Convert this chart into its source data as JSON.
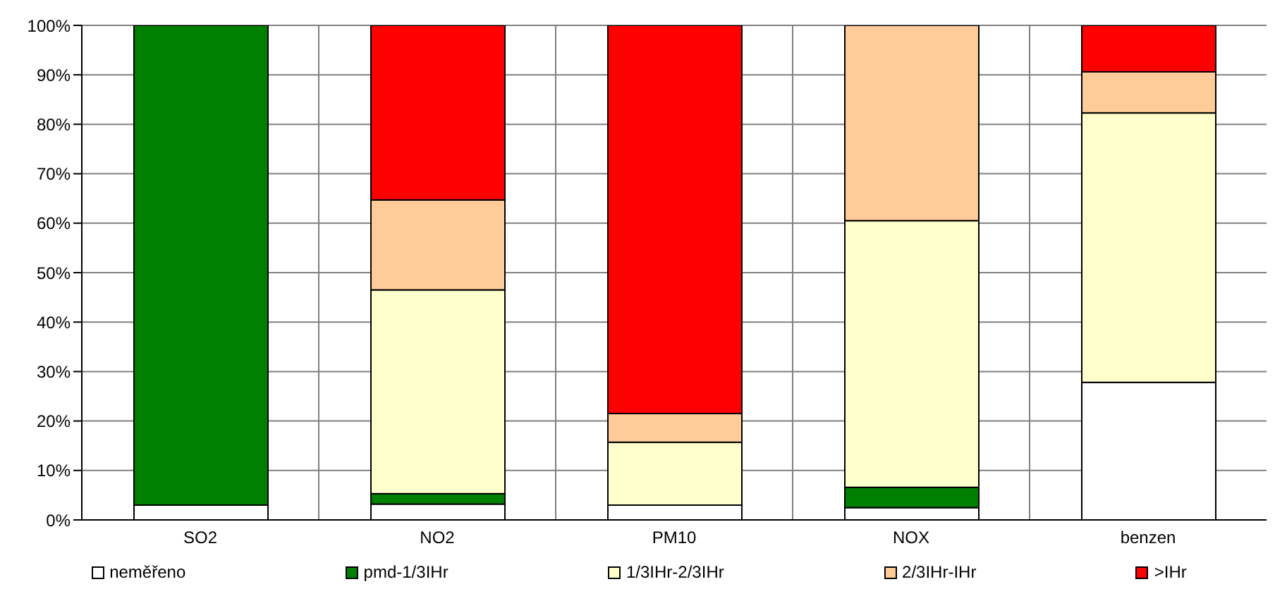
{
  "chart_data": {
    "type": "bar",
    "stacked": true,
    "categories": [
      "SO2",
      "NO2",
      "PM10",
      "NOX",
      "benzen"
    ],
    "series": [
      {
        "name": "neměřeno",
        "color": "#ffffff",
        "values": [
          3,
          3.2,
          3,
          2.5,
          27.8
        ]
      },
      {
        "name": "pmd-1/3IHr",
        "color": "#008000",
        "values": [
          97,
          2.1,
          0,
          4.1,
          0
        ]
      },
      {
        "name": "1/3IHr-2/3IHr",
        "color": "#ffffcc",
        "values": [
          0,
          41.2,
          12.7,
          53.9,
          54.5
        ]
      },
      {
        "name": "2/3IHr-IHr",
        "color": "#ffcc99",
        "values": [
          0,
          18.2,
          5.8,
          39.5,
          8.3
        ]
      },
      {
        "name": ">IHr",
        "color": "#ff0000",
        "values": [
          0,
          35.3,
          78.5,
          0,
          9.4
        ]
      }
    ],
    "ylim": [
      0,
      100
    ],
    "yticks": [
      {
        "value": 0,
        "label": "0%"
      },
      {
        "value": 10,
        "label": "10%"
      },
      {
        "value": 20,
        "label": "20%"
      },
      {
        "value": 30,
        "label": "30%"
      },
      {
        "value": 40,
        "label": "40%"
      },
      {
        "value": 50,
        "label": "50%"
      },
      {
        "value": 60,
        "label": "60%"
      },
      {
        "value": 70,
        "label": "70%"
      },
      {
        "value": 80,
        "label": "80%"
      },
      {
        "value": 90,
        "label": "90%"
      },
      {
        "value": 100,
        "label": "100%"
      }
    ],
    "grid": true,
    "legend": "bottom"
  }
}
